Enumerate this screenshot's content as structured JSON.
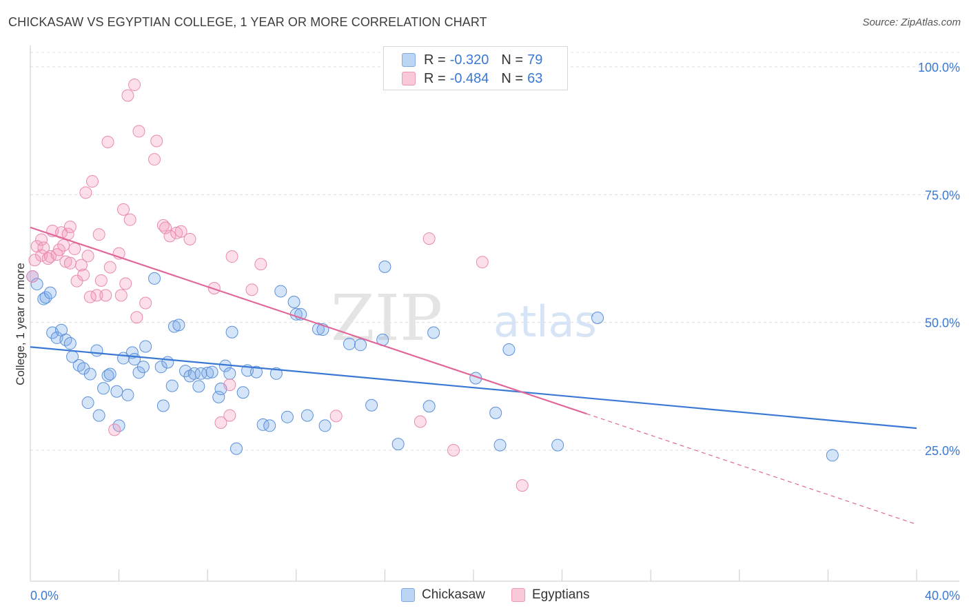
{
  "header": {
    "title": "CHICKASAW VS EGYPTIAN COLLEGE, 1 YEAR OR MORE CORRELATION CHART",
    "source": "Source: ZipAtlas.com"
  },
  "watermark": {
    "zip": "ZIP",
    "atlas": "atlas"
  },
  "legend_top": [
    {
      "r_label": "R =",
      "r_value": "-0.320",
      "n_label": "N =",
      "n_value": "79"
    },
    {
      "r_label": "R =",
      "r_value": "-0.484",
      "n_label": "N =",
      "n_value": "63"
    }
  ],
  "legend_bottom": [
    "Chickasaw",
    "Egyptians"
  ],
  "chart_data": {
    "type": "scatter",
    "title": "CHICKASAW VS EGYPTIAN COLLEGE, 1 YEAR OR MORE CORRELATION CHART",
    "xlabel": "",
    "ylabel": "College, 1 year or more",
    "xlim": [
      0,
      40
    ],
    "ylim": [
      4,
      105
    ],
    "x_tick_labels": [
      {
        "value": 0,
        "label": "0.0%"
      },
      {
        "value": 40,
        "label": "40.0%"
      }
    ],
    "y_tick_labels": [
      {
        "value": 100,
        "label": "100.0%"
      },
      {
        "value": 75,
        "label": "75.0%"
      },
      {
        "value": 50,
        "label": "50.0%"
      },
      {
        "value": 25,
        "label": "25.0%"
      }
    ],
    "grid": "horizontal dashed",
    "colors": {
      "chickasaw": "#3a78d4",
      "egyptians": "#e0679a"
    },
    "series": [
      {
        "name": "Chickasaw",
        "color": "#3a78d4",
        "trend": {
          "x": [
            0,
            40
          ],
          "y": [
            45.2,
            29.3
          ],
          "solid_to": 40
        },
        "points": [
          [
            0.1,
            59.0
          ],
          [
            0.3,
            57.5
          ],
          [
            0.6,
            54.6
          ],
          [
            0.7,
            54.9
          ],
          [
            0.9,
            55.8
          ],
          [
            1.0,
            48.0
          ],
          [
            1.2,
            47.0
          ],
          [
            1.4,
            48.5
          ],
          [
            1.6,
            46.6
          ],
          [
            1.8,
            45.9
          ],
          [
            1.9,
            43.3
          ],
          [
            2.2,
            41.6
          ],
          [
            2.4,
            41.0
          ],
          [
            2.6,
            34.3
          ],
          [
            2.7,
            39.9
          ],
          [
            3.0,
            44.5
          ],
          [
            3.1,
            31.8
          ],
          [
            3.3,
            37.1
          ],
          [
            3.5,
            39.6
          ],
          [
            3.6,
            39.9
          ],
          [
            3.9,
            36.5
          ],
          [
            4.0,
            29.8
          ],
          [
            4.2,
            43.0
          ],
          [
            4.4,
            35.8
          ],
          [
            4.6,
            44.1
          ],
          [
            4.7,
            42.8
          ],
          [
            4.9,
            40.2
          ],
          [
            5.1,
            41.3
          ],
          [
            5.2,
            45.3
          ],
          [
            5.6,
            58.6
          ],
          [
            5.9,
            41.3
          ],
          [
            6.0,
            33.7
          ],
          [
            6.2,
            42.2
          ],
          [
            6.4,
            37.6
          ],
          [
            6.5,
            49.2
          ],
          [
            6.7,
            49.5
          ],
          [
            7.0,
            40.5
          ],
          [
            7.2,
            39.5
          ],
          [
            7.4,
            40.0
          ],
          [
            7.6,
            37.5
          ],
          [
            7.7,
            40.0
          ],
          [
            8.0,
            40.1
          ],
          [
            8.2,
            40.3
          ],
          [
            8.5,
            35.4
          ],
          [
            8.6,
            37.0
          ],
          [
            8.8,
            41.5
          ],
          [
            9.0,
            40.0
          ],
          [
            9.1,
            48.1
          ],
          [
            9.3,
            25.3
          ],
          [
            9.6,
            36.3
          ],
          [
            9.8,
            40.6
          ],
          [
            10.2,
            40.3
          ],
          [
            10.5,
            30.0
          ],
          [
            10.8,
            29.8
          ],
          [
            11.1,
            40.0
          ],
          [
            11.3,
            56.1
          ],
          [
            11.6,
            31.5
          ],
          [
            11.9,
            54.0
          ],
          [
            12.0,
            51.6
          ],
          [
            12.2,
            51.6
          ],
          [
            12.5,
            31.8
          ],
          [
            13.0,
            48.7
          ],
          [
            13.2,
            48.6
          ],
          [
            13.3,
            29.8
          ],
          [
            14.4,
            45.8
          ],
          [
            14.9,
            45.6
          ],
          [
            15.4,
            33.8
          ],
          [
            15.9,
            46.6
          ],
          [
            16.0,
            60.9
          ],
          [
            16.6,
            26.2
          ],
          [
            18.0,
            33.6
          ],
          [
            18.2,
            48.0
          ],
          [
            20.1,
            39.1
          ],
          [
            21.0,
            32.3
          ],
          [
            21.2,
            26.0
          ],
          [
            21.6,
            44.7
          ],
          [
            23.8,
            26.0
          ],
          [
            25.6,
            50.9
          ],
          [
            36.2,
            24.0
          ]
        ]
      },
      {
        "name": "Egyptians",
        "color": "#e0679a",
        "trend": {
          "x": [
            0,
            40
          ],
          "y": [
            68.6,
            10.5
          ],
          "solid_to": 25.1
        },
        "points": [
          [
            0.1,
            59.0
          ],
          [
            0.2,
            62.2
          ],
          [
            0.3,
            64.9
          ],
          [
            0.5,
            66.2
          ],
          [
            0.5,
            63.1
          ],
          [
            0.6,
            64.6
          ],
          [
            0.8,
            62.5
          ],
          [
            0.9,
            62.9
          ],
          [
            1.0,
            67.9
          ],
          [
            1.2,
            63.3
          ],
          [
            1.3,
            64.2
          ],
          [
            1.4,
            67.6
          ],
          [
            1.5,
            65.1
          ],
          [
            1.6,
            61.9
          ],
          [
            1.7,
            67.3
          ],
          [
            1.8,
            61.6
          ],
          [
            1.8,
            68.7
          ],
          [
            2.0,
            64.4
          ],
          [
            2.1,
            58.1
          ],
          [
            2.3,
            61.2
          ],
          [
            2.4,
            59.3
          ],
          [
            2.6,
            63.0
          ],
          [
            2.7,
            55.0
          ],
          [
            2.8,
            77.6
          ],
          [
            2.5,
            75.4
          ],
          [
            3.0,
            55.3
          ],
          [
            3.1,
            67.2
          ],
          [
            3.2,
            58.2
          ],
          [
            3.4,
            55.3
          ],
          [
            3.5,
            85.3
          ],
          [
            3.6,
            60.8
          ],
          [
            3.8,
            29.0
          ],
          [
            4.0,
            63.5
          ],
          [
            4.1,
            55.3
          ],
          [
            4.2,
            72.1
          ],
          [
            4.3,
            57.6
          ],
          [
            4.4,
            94.4
          ],
          [
            4.5,
            70.1
          ],
          [
            4.7,
            96.5
          ],
          [
            4.8,
            51.0
          ],
          [
            4.9,
            87.4
          ],
          [
            5.2,
            53.8
          ],
          [
            5.6,
            81.9
          ],
          [
            5.7,
            85.5
          ],
          [
            6.0,
            69.0
          ],
          [
            6.1,
            68.5
          ],
          [
            6.3,
            66.9
          ],
          [
            6.6,
            67.5
          ],
          [
            7.2,
            66.3
          ],
          [
            8.3,
            56.7
          ],
          [
            8.6,
            30.4
          ],
          [
            9.0,
            37.8
          ],
          [
            9.0,
            31.8
          ],
          [
            9.1,
            62.9
          ],
          [
            10.0,
            56.4
          ],
          [
            10.4,
            61.4
          ],
          [
            13.8,
            31.7
          ],
          [
            17.6,
            30.6
          ],
          [
            18.0,
            66.4
          ],
          [
            19.1,
            25.0
          ],
          [
            20.4,
            61.8
          ],
          [
            22.2,
            18.1
          ],
          [
            6.8,
            67.8
          ]
        ]
      }
    ]
  }
}
